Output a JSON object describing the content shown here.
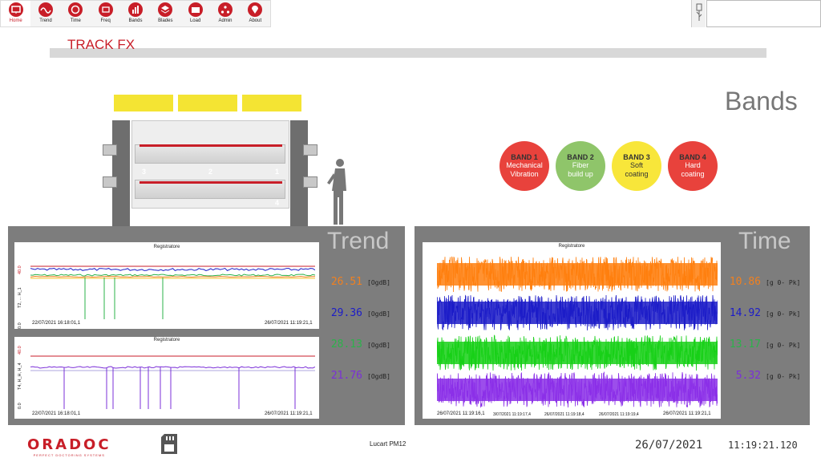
{
  "toolbar": {
    "items": [
      {
        "label": "Home",
        "icon": "monitor-icon",
        "active": true
      },
      {
        "label": "Trend",
        "icon": "wave-icon"
      },
      {
        "label": "Time",
        "icon": "circle-icon"
      },
      {
        "label": "Freq",
        "icon": "cart-icon"
      },
      {
        "label": "Bands",
        "icon": "bar-chart-icon"
      },
      {
        "label": "Blades",
        "icon": "layers-icon"
      },
      {
        "label": "Load",
        "icon": "folder-icon"
      },
      {
        "label": "Admin",
        "icon": "network-icon"
      },
      {
        "label": "About",
        "icon": "location-icon"
      }
    ]
  },
  "page_title": "TRACK FX",
  "bands": {
    "title": "Bands",
    "items": [
      {
        "name": "BAND 1",
        "desc_1": "Mechanical",
        "desc_2": "Vibration",
        "color": "#e8423c",
        "text": "#ffffff"
      },
      {
        "name": "BAND 2",
        "desc_1": "Fiber",
        "desc_2": "build up",
        "color": "#8fc56a",
        "text": "#ffffff"
      },
      {
        "name": "BAND 3",
        "desc_1": "Soft",
        "desc_2": "coating",
        "color": "#f8e63a",
        "text": "#333333"
      },
      {
        "name": "BAND 4",
        "desc_1": "Hard",
        "desc_2": "coating",
        "color": "#e8423c",
        "text": "#ffffff"
      }
    ]
  },
  "diagram": {
    "badges": [
      {
        "num": "3",
        "color": "#2bb34a"
      },
      {
        "num": "2",
        "color": "#1c1cc8"
      },
      {
        "num": "1",
        "color": "#f08020"
      },
      {
        "num": "4",
        "color": "#7b2fd8"
      }
    ]
  },
  "trend": {
    "title": "Trend",
    "chart1": {
      "name": "Registratore",
      "start": "22/07/2021 16:18:01,1",
      "end": "26/07/2021 11:19:21,1",
      "ytop": "40.0",
      "ybot": "0.0",
      "axis": "T2, ... H_1"
    },
    "chart2": {
      "name": "Registratore",
      "start": "22/07/2021 16:18:01,1",
      "end": "26/07/2021 11:19:21,1",
      "ytop": "40.0",
      "ybot": "0.0",
      "axis": "T4, H_H, H_4"
    },
    "values": [
      {
        "value": "26.51",
        "unit": "[OgdB]",
        "color": "#f08020"
      },
      {
        "value": "29.36",
        "unit": "[OgdB]",
        "color": "#1c1cc8"
      },
      {
        "value": "28.13",
        "unit": "[OgdB]",
        "color": "#2bb34a"
      },
      {
        "value": "21.76",
        "unit": "[OgdB]",
        "color": "#7b2fd8"
      }
    ]
  },
  "time": {
    "title": "Time",
    "chart": {
      "name": "Registratore",
      "start": "26/07/2021 11:19:16,1",
      "ticks": [
        "3/07/2021 11:19:17,4",
        "26/07/2021 11:19:18,4",
        "26/07/2021 11:19:19,4",
        "26/07/2021 11:19:21,1"
      ]
    },
    "values": [
      {
        "value": "10.86",
        "unit": "[g 0- Pk]",
        "color": "#f08020"
      },
      {
        "value": "14.92",
        "unit": "[g 0- Pk]",
        "color": "#1c1cc8"
      },
      {
        "value": "13.17",
        "unit": "[g 0- Pk]",
        "color": "#2bb34a"
      },
      {
        "value": "5.32",
        "unit": "[g 0- Pk]",
        "color": "#7b2fd8"
      }
    ]
  },
  "footer": {
    "brand": "ORADOC",
    "tagline": "PERFECT DOCTORING SYSTEMS",
    "machine": "Lucart PM12",
    "date": "26/07/2021",
    "time": "11:19:21.120"
  }
}
